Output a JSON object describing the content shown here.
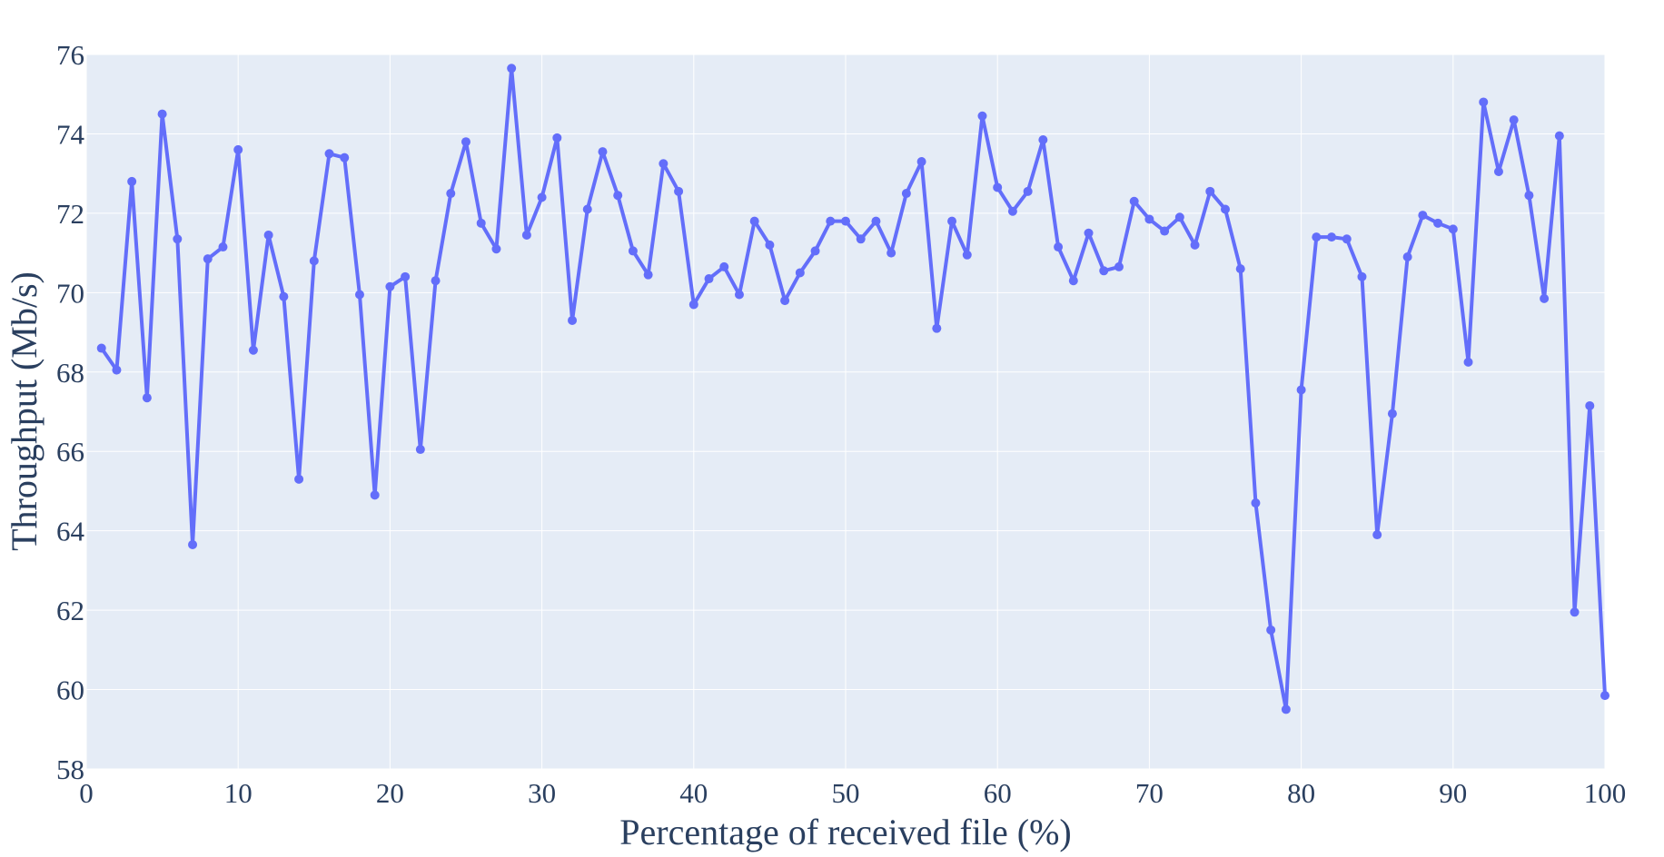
{
  "chart_data": {
    "type": "line",
    "title": "",
    "xlabel": "Percentage of received file (%)",
    "ylabel": "Throughput (Mb/s)",
    "xlim": [
      0,
      100
    ],
    "ylim": [
      58,
      76
    ],
    "x_ticks": [
      0,
      10,
      20,
      30,
      40,
      50,
      60,
      70,
      80,
      90,
      100
    ],
    "y_ticks": [
      58,
      60,
      62,
      64,
      66,
      68,
      70,
      72,
      74,
      76
    ],
    "grid": true,
    "legend": "none",
    "colors": {
      "line": "#636efa",
      "plot_bg": "#e5ecf6",
      "grid": "#ffffff",
      "text": "#2a3f5f"
    },
    "series": [
      {
        "x": [
          1,
          2,
          3,
          4,
          5,
          6,
          7,
          8,
          9,
          10,
          11,
          12,
          13,
          14,
          15,
          16,
          17,
          18,
          19,
          20,
          21,
          22,
          23,
          24,
          25,
          26,
          27,
          28,
          29,
          30,
          31,
          32,
          33,
          34,
          35,
          36,
          37,
          38,
          39,
          40,
          41,
          42,
          43,
          44,
          45,
          46,
          47,
          48,
          49,
          50,
          51,
          52,
          53,
          54,
          55,
          56,
          57,
          58,
          59,
          60,
          61,
          62,
          63,
          64,
          65,
          66,
          67,
          68,
          69,
          70,
          71,
          72,
          73,
          74,
          75,
          76,
          77,
          78,
          79,
          80,
          81,
          82,
          83,
          84,
          85,
          86,
          87,
          88,
          89,
          90,
          91,
          92,
          93,
          94,
          95,
          96,
          97,
          98,
          99,
          100
        ],
        "y": [
          68.6,
          68.05,
          72.8,
          67.35,
          74.5,
          71.35,
          63.65,
          70.85,
          71.15,
          73.6,
          68.55,
          71.45,
          69.9,
          65.3,
          70.8,
          73.5,
          73.4,
          69.95,
          64.9,
          70.15,
          70.4,
          66.05,
          70.3,
          72.5,
          73.8,
          71.75,
          71.1,
          75.65,
          71.45,
          72.4,
          73.9,
          69.3,
          72.1,
          73.55,
          72.45,
          71.05,
          70.45,
          73.25,
          72.55,
          69.7,
          70.35,
          70.65,
          69.95,
          71.8,
          71.2,
          69.8,
          70.5,
          71.05,
          71.8,
          71.8,
          71.35,
          71.8,
          71.0,
          72.5,
          73.3,
          69.1,
          71.8,
          70.95,
          74.45,
          72.65,
          72.05,
          72.55,
          73.85,
          71.15,
          70.3,
          71.5,
          70.55,
          70.65,
          72.3,
          71.85,
          71.55,
          71.9,
          71.2,
          72.55,
          72.1,
          70.6,
          64.7,
          61.5,
          59.5,
          67.55,
          71.4,
          71.4,
          71.35,
          70.4,
          63.9,
          66.95,
          70.9,
          71.95,
          71.75,
          71.6,
          68.25,
          74.8,
          73.05,
          74.35,
          72.45,
          69.85,
          73.95,
          61.95,
          67.15,
          59.85
        ]
      }
    ]
  }
}
